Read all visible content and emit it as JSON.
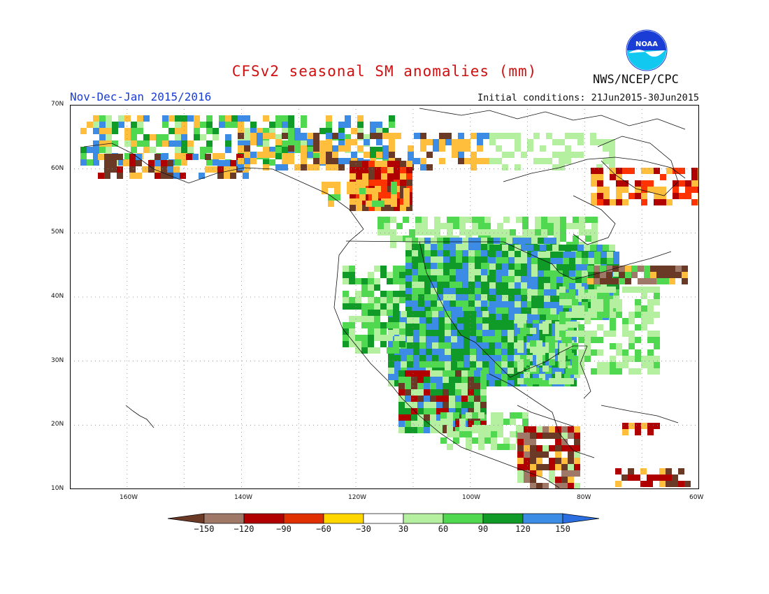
{
  "header": {
    "title": "CFSv2 seasonal SM anomalies (mm)",
    "period": "Nov-Dec-Jan 2015/2016",
    "initial_conditions": "Initial conditions: 21Jun2015-30Jun2015",
    "agency": "NWS/NCEP/CPC",
    "logo_text": "NOAA"
  },
  "map": {
    "lat_labels": [
      "70N",
      "60N",
      "50N",
      "40N",
      "30N",
      "20N",
      "10N"
    ],
    "lon_labels": [
      "160W",
      "140W",
      "120W",
      "100W",
      "80W",
      "60W"
    ],
    "extent": {
      "lon_min": -170,
      "lon_max": -60,
      "lat_min": 10,
      "lat_max": 70
    }
  },
  "legend": {
    "labels": [
      "-150",
      "-120",
      "-90",
      "-60",
      "-30",
      "30",
      "60",
      "90",
      "120",
      "150"
    ],
    "colors": [
      "#6b3a26",
      "#a07868",
      "#b00000",
      "#e03000",
      "#ffd700",
      "#ffffff",
      "#b4f0a0",
      "#50d850",
      "#109a28",
      "#3c8ce6",
      "#2a6ee0"
    ]
  },
  "colors": {
    "title": "#d01010",
    "period": "#1a3dd6",
    "dry_brown": "#6b3a26",
    "dry_tan": "#a07868",
    "dry_red": "#b00000",
    "dry_orange": "#ff3300",
    "dry_yellow": "#ffbe3c",
    "wet_light": "#b4f0a0",
    "wet_mid": "#50d850",
    "wet_dark": "#109a28",
    "wet_blue": "#3c8ce6"
  }
}
